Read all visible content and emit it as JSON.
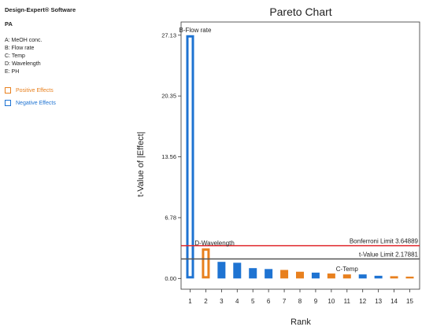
{
  "sidebar": {
    "software": "Design-Expert® Software",
    "response": "PA",
    "factors": [
      "A: MeOH conc.",
      "B: Flow rate",
      "C: Temp",
      "D: Wavelength",
      "E: PH"
    ],
    "legend": [
      {
        "label": "Positive Effects",
        "color": "#E8801E",
        "text_color": "#E8801E"
      },
      {
        "label": "Negative Effects",
        "color": "#1E73D2",
        "text_color": "#1E73D2"
      }
    ]
  },
  "chart_data": {
    "type": "bar",
    "title": "Pareto Chart",
    "xlabel": "Rank",
    "ylabel": "t-Value of |Effect|",
    "categories": [
      "1",
      "2",
      "3",
      "4",
      "5",
      "6",
      "7",
      "8",
      "9",
      "10",
      "11",
      "12",
      "13",
      "14",
      "15"
    ],
    "values": [
      27.13,
      3.35,
      1.85,
      1.75,
      1.15,
      1.05,
      0.95,
      0.75,
      0.65,
      0.55,
      0.45,
      0.45,
      0.3,
      0.25,
      0.2
    ],
    "effect_signs": [
      "negative",
      "positive",
      "negative",
      "negative",
      "negative",
      "negative",
      "positive",
      "positive",
      "negative",
      "positive",
      "positive",
      "negative",
      "negative",
      "positive",
      "positive"
    ],
    "highlighted": [
      1,
      2,
      11
    ],
    "bar_labels": {
      "1": "B-Flow rate",
      "2": "D-Wavelength",
      "11": "C-Temp"
    },
    "yticks": [
      "0.00",
      "6.78",
      "13.56",
      "20.35",
      "27.13"
    ],
    "ytick_values": [
      0,
      6.78,
      13.56,
      20.35,
      27.13
    ],
    "ylim": [
      -1.2,
      28.6
    ],
    "limits": [
      {
        "label": "Bonferroni Limit 3.64889",
        "value": 3.64889,
        "color": "#E0262B"
      },
      {
        "label": "t-Value Limit 2.17881",
        "value": 2.17881,
        "color": "#555555"
      }
    ],
    "colors": {
      "positive": "#E8801E",
      "negative": "#1E73D2"
    }
  }
}
